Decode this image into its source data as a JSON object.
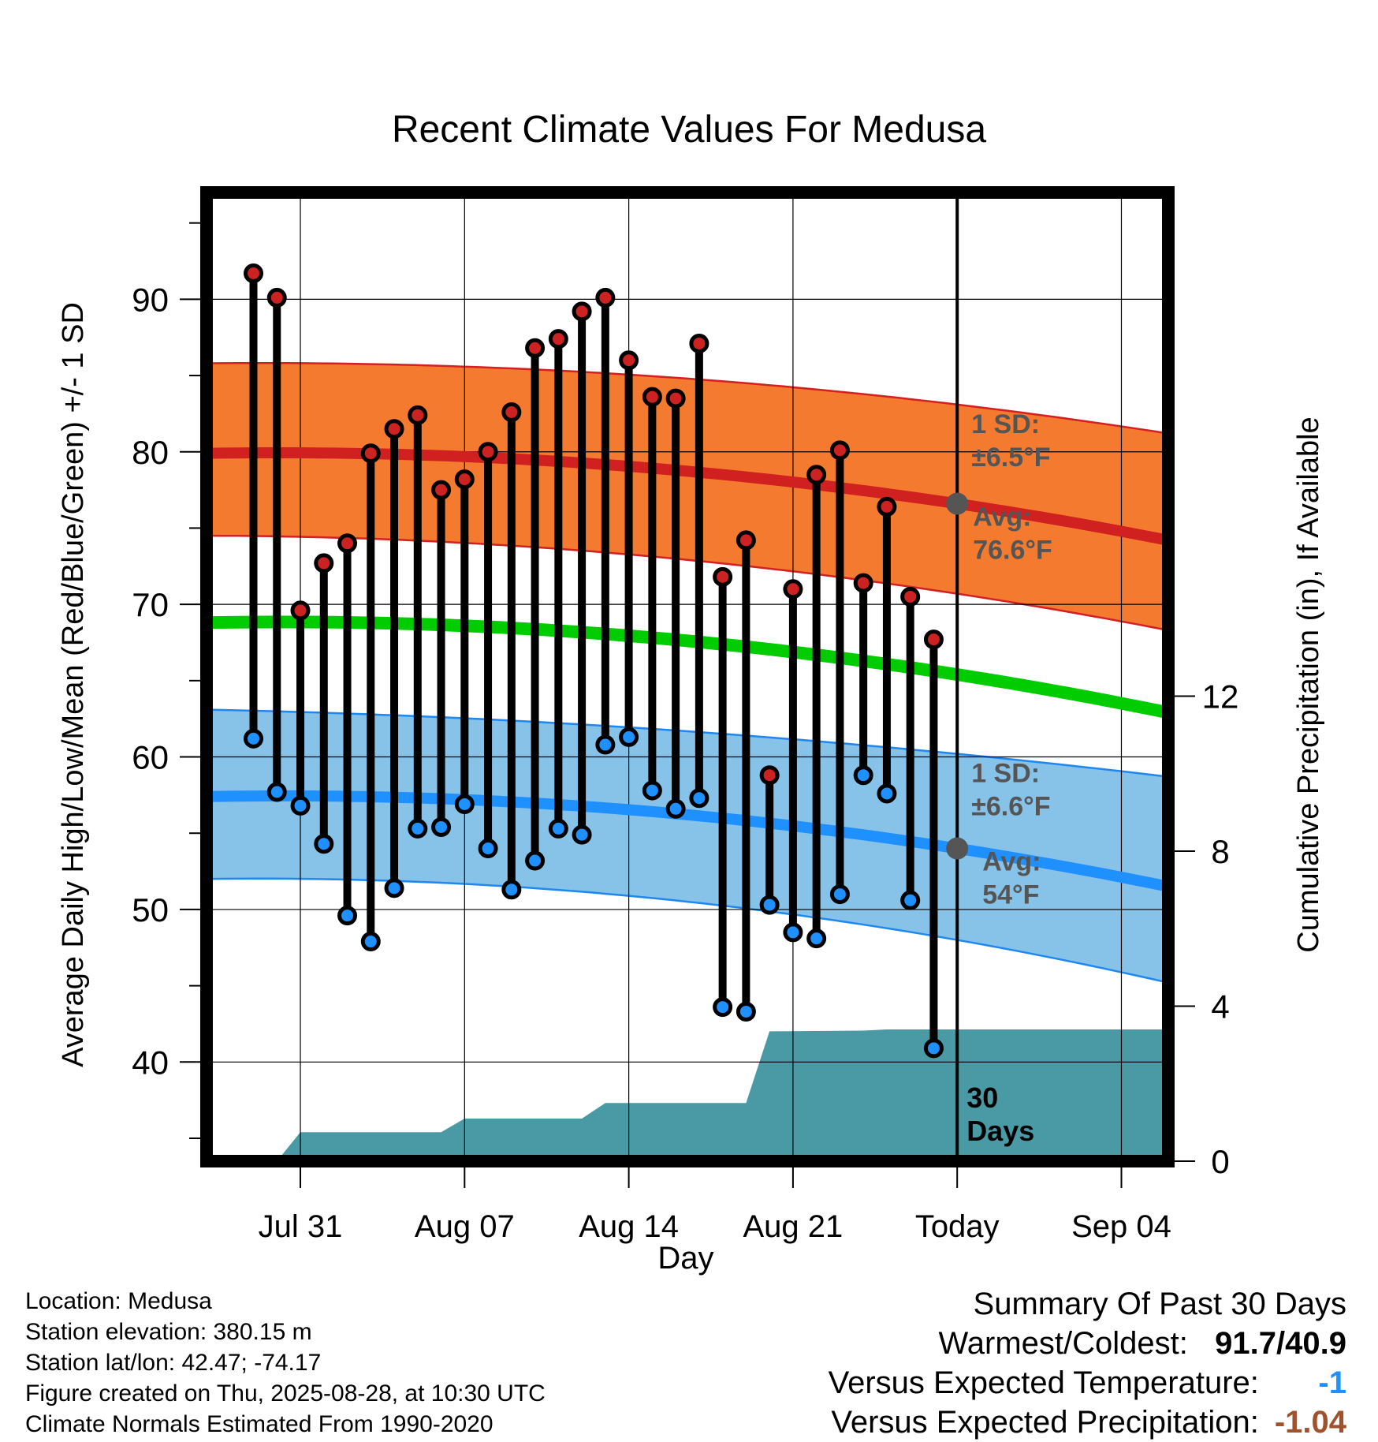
{
  "chart_data": {
    "type": "line",
    "title": "Recent Climate Values For Medusa",
    "xlabel": "Day",
    "ylabel": "Average Daily High/Low/Mean (Red/Blue/Green) +/- 1 SD",
    "ylabel_right": "Cumulative Precipitation (in), If Available",
    "ylim": [
      33.5,
      97
    ],
    "ylim_right": [
      0,
      25
    ],
    "yticks": [
      40,
      50,
      60,
      70,
      80,
      90
    ],
    "yticks_right": [
      0,
      4,
      8,
      12
    ],
    "grid": true,
    "x_range": [
      "2025-07-27",
      "2025-09-06"
    ],
    "x_ticks": [
      {
        "date": "2025-07-31",
        "label": "Jul 31"
      },
      {
        "date": "2025-08-07",
        "label": "Aug 07"
      },
      {
        "date": "2025-08-14",
        "label": "Aug 14"
      },
      {
        "date": "2025-08-21",
        "label": "Aug 21"
      },
      {
        "date": "2025-08-28",
        "label": "Today"
      },
      {
        "date": "2025-09-04",
        "label": "Sep 04"
      }
    ],
    "today": "2025-08-28",
    "window_label": [
      "30",
      "Days"
    ],
    "dates": [
      "2025-07-29",
      "2025-07-30",
      "2025-07-31",
      "2025-08-01",
      "2025-08-02",
      "2025-08-03",
      "2025-08-04",
      "2025-08-05",
      "2025-08-06",
      "2025-08-07",
      "2025-08-08",
      "2025-08-09",
      "2025-08-10",
      "2025-08-11",
      "2025-08-12",
      "2025-08-13",
      "2025-08-14",
      "2025-08-15",
      "2025-08-16",
      "2025-08-17",
      "2025-08-18",
      "2025-08-19",
      "2025-08-20",
      "2025-08-21",
      "2025-08-22",
      "2025-08-23",
      "2025-08-24",
      "2025-08-25",
      "2025-08-26",
      "2025-08-27"
    ],
    "series": [
      {
        "name": "High",
        "color": "#cc2222",
        "values": [
          91.7,
          90.1,
          69.6,
          72.7,
          74.0,
          79.9,
          81.5,
          82.4,
          77.5,
          78.2,
          80.0,
          82.6,
          86.8,
          87.4,
          89.2,
          90.1,
          86.0,
          83.6,
          83.5,
          87.1,
          71.8,
          74.2,
          58.8,
          71.0,
          78.5,
          80.1,
          71.4,
          76.4,
          70.5,
          67.7
        ]
      },
      {
        "name": "Low",
        "color": "#1e90ff",
        "values": [
          61.2,
          57.7,
          56.8,
          54.3,
          49.6,
          47.9,
          51.4,
          55.3,
          55.4,
          56.9,
          54.0,
          51.3,
          53.2,
          55.3,
          54.9,
          60.8,
          61.3,
          57.8,
          56.6,
          57.3,
          43.6,
          43.3,
          50.3,
          48.5,
          48.1,
          51.0,
          58.8,
          57.6,
          50.6,
          40.9
        ]
      }
    ],
    "normals": {
      "high_avg": {
        "start": 79.9,
        "today": 76.6,
        "end": 74.2
      },
      "high_upper": {
        "start": 85.8,
        "today": 83.1,
        "end": 81.2
      },
      "high_lower": {
        "start": 74.5,
        "today": 70.7,
        "end": 68.3
      },
      "low_avg": {
        "start": 57.4,
        "today": 54.0,
        "end": 51.5
      },
      "low_upper": {
        "start": 63.1,
        "today": 60.2,
        "end": 58.7
      },
      "low_lower": {
        "start": 52.0,
        "today": 48.0,
        "end": 45.2
      },
      "mean_avg": {
        "start": 68.8,
        "today": 65.4,
        "end": 62.9
      }
    },
    "annotations": {
      "high_sd_label": "1 SD:",
      "high_sd_value": "±6.5°F",
      "high_avg_label": "Avg:",
      "high_avg_value": "76.6°F",
      "low_sd_label": "1 SD:",
      "low_sd_value": "±6.6°F",
      "low_avg_label": "Avg:",
      "low_avg_value": "54°F"
    },
    "precipitation": {
      "name": "Cumulative Precipitation",
      "color": "#4a9aa5",
      "points": [
        {
          "date": "2025-07-29",
          "value": 0
        },
        {
          "date": "2025-07-30",
          "value": 0
        },
        {
          "date": "2025-07-31",
          "value": 0.75
        },
        {
          "date": "2025-08-06",
          "value": 0.75
        },
        {
          "date": "2025-08-07",
          "value": 1.1
        },
        {
          "date": "2025-08-12",
          "value": 1.1
        },
        {
          "date": "2025-08-13",
          "value": 1.5
        },
        {
          "date": "2025-08-19",
          "value": 1.5
        },
        {
          "date": "2025-08-20",
          "value": 3.35
        },
        {
          "date": "2025-08-24",
          "value": 3.37
        },
        {
          "date": "2025-08-25",
          "value": 3.4
        },
        {
          "date": "2025-09-06",
          "value": 3.4
        }
      ]
    }
  },
  "footer": {
    "location": "Location: Medusa",
    "elevation": "Station elevation: 380.15 m",
    "latlon": "Station lat/lon: 42.47; -74.17",
    "created": "Figure created on Thu, 2025-08-28, at 10:30 UTC",
    "normals_period": "Climate Normals Estimated From 1990-2020"
  },
  "summary": {
    "heading": "Summary Of Past 30 Days",
    "warm_cold_label": "Warmest/Coldest:",
    "warm_cold_value": "91.7/40.9",
    "temp_label": "Versus Expected Temperature:",
    "temp_value": "-1",
    "precip_label": "Versus Expected Precipitation:",
    "precip_value": "-1.04"
  }
}
